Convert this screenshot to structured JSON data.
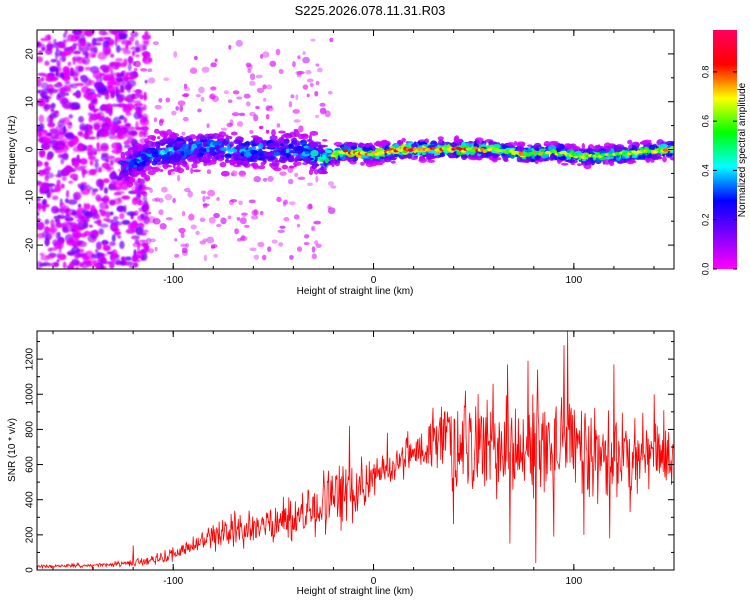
{
  "title": "S225.2026.078.11.31.R03",
  "chart_data": [
    {
      "type": "heatmap",
      "title": "",
      "xlabel": "Height of straight line (km)",
      "ylabel": "Frequency (Hz)",
      "xlim": [
        -168,
        150
      ],
      "ylim": [
        -25,
        25
      ],
      "xticks": [
        -100,
        0,
        100
      ],
      "yticks": [
        -20,
        -10,
        0,
        10,
        20
      ],
      "grid": false,
      "colorbar": {
        "label": "Normalized spectral amplitude",
        "range": [
          0,
          0.97
        ],
        "ticks": [
          0.0,
          0.2,
          0.4,
          0.6,
          0.8
        ],
        "colormap": [
          "#ff00ff",
          "#7f00ff",
          "#0000ff",
          "#00ffff",
          "#00ff00",
          "#ffff00",
          "#ff0000",
          "#ff0060"
        ]
      },
      "description_note": "",
      "ridge": [
        {
          "x": -125,
          "freq": -3.5,
          "amp": 0.35
        },
        {
          "x": -110,
          "freq": -1.0,
          "amp": 0.45
        },
        {
          "x": -95,
          "freq": 0.0,
          "amp": 0.45
        },
        {
          "x": -80,
          "freq": 0.5,
          "amp": 0.4
        },
        {
          "x": -65,
          "freq": -0.5,
          "amp": 0.45
        },
        {
          "x": -50,
          "freq": 0.0,
          "amp": 0.4
        },
        {
          "x": -35,
          "freq": 0.0,
          "amp": 0.45
        },
        {
          "x": -25,
          "freq": -2.0,
          "amp": 0.5
        },
        {
          "x": -15,
          "freq": -0.5,
          "amp": 0.85
        },
        {
          "x": 0,
          "freq": -1.0,
          "amp": 0.75
        },
        {
          "x": 15,
          "freq": 0.0,
          "amp": 0.9
        },
        {
          "x": 30,
          "freq": 0.0,
          "amp": 0.8
        },
        {
          "x": 45,
          "freq": 0.0,
          "amp": 0.85
        },
        {
          "x": 60,
          "freq": 0.0,
          "amp": 0.7
        },
        {
          "x": 75,
          "freq": -1.0,
          "amp": 0.75
        },
        {
          "x": 90,
          "freq": -0.5,
          "amp": 0.7
        },
        {
          "x": 105,
          "freq": -1.5,
          "amp": 0.65
        },
        {
          "x": 120,
          "freq": -1.0,
          "amp": 0.7
        },
        {
          "x": 135,
          "freq": -0.5,
          "amp": 0.7
        },
        {
          "x": 148,
          "freq": 0.0,
          "amp": 0.75
        }
      ]
    },
    {
      "type": "line",
      "title": "",
      "xlabel": "Height of straight line (km)",
      "ylabel": "SNR (10 * v/v)",
      "xlim": [
        -168,
        150
      ],
      "ylim": [
        0,
        1360
      ],
      "xticks": [
        -100,
        0,
        100
      ],
      "yticks": [
        0,
        200,
        400,
        600,
        800,
        1000,
        1200
      ],
      "grid": false,
      "series": [
        {
          "color": "#ff0000",
          "x": [
            -168,
            -160,
            -150,
            -140,
            -130,
            -120,
            -110,
            -100,
            -90,
            -80,
            -70,
            -60,
            -50,
            -40,
            -30,
            -25,
            -20,
            -15,
            -10,
            -5,
            0,
            5,
            10,
            15,
            20,
            25,
            30,
            35,
            40,
            45,
            50,
            55,
            60,
            65,
            70,
            75,
            80,
            85,
            90,
            95,
            100,
            105,
            110,
            115,
            120,
            125,
            130,
            135,
            140,
            145,
            150
          ],
          "y": [
            20,
            20,
            25,
            25,
            30,
            40,
            60,
            90,
            140,
            180,
            220,
            240,
            270,
            300,
            340,
            380,
            400,
            430,
            470,
            500,
            520,
            560,
            600,
            640,
            680,
            700,
            720,
            730,
            740,
            740,
            720,
            720,
            700,
            710,
            700,
            680,
            690,
            700,
            680,
            690,
            700,
            680,
            670,
            660,
            680,
            660,
            650,
            640,
            660,
            640,
            700
          ],
          "spread": [
            10,
            10,
            12,
            12,
            15,
            20,
            30,
            45,
            60,
            80,
            100,
            110,
            120,
            140,
            170,
            200,
            210,
            190,
            180,
            150,
            120,
            110,
            100,
            110,
            130,
            160,
            220,
            260,
            280,
            300,
            300,
            300,
            310,
            300,
            300,
            300,
            310,
            300,
            320,
            310,
            300,
            290,
            280,
            280,
            270,
            260,
            260,
            250,
            250,
            240,
            200
          ],
          "peaks": [
            {
              "x": -120,
              "y": 140
            },
            {
              "x": -12,
              "y": 820
            },
            {
              "x": 7,
              "y": 780
            },
            {
              "x": 33,
              "y": 840
            },
            {
              "x": 46,
              "y": 1020
            },
            {
              "x": 67,
              "y": 1170
            },
            {
              "x": 77,
              "y": 1190
            },
            {
              "x": 82,
              "y": 1140
            },
            {
              "x": 95,
              "y": 1280
            },
            {
              "x": 97,
              "y": 1360
            },
            {
              "x": 105,
              "y": 1060
            },
            {
              "x": 120,
              "y": 1170
            },
            {
              "x": 140,
              "y": 1000
            }
          ],
          "troughs": [
            {
              "x": 40,
              "y": 260
            },
            {
              "x": 68,
              "y": 150
            },
            {
              "x": 81,
              "y": 40
            },
            {
              "x": 90,
              "y": 190
            },
            {
              "x": 105,
              "y": 200
            },
            {
              "x": 118,
              "y": 180
            },
            {
              "x": 128,
              "y": 330
            }
          ]
        }
      ]
    }
  ]
}
